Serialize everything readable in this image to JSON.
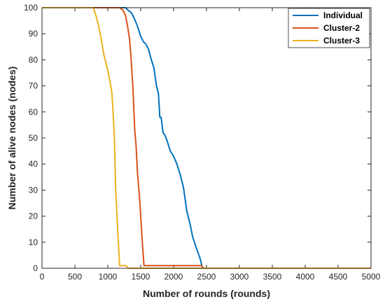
{
  "chart_data": {
    "type": "line",
    "xlabel": "Number of rounds (rounds)",
    "ylabel": "Number of alive nodes (nodes)",
    "xlim": [
      0,
      5000
    ],
    "ylim": [
      0,
      100
    ],
    "xticks": [
      0,
      500,
      1000,
      1500,
      2000,
      2500,
      3000,
      3500,
      4000,
      4500,
      5000
    ],
    "yticks": [
      0,
      10,
      20,
      30,
      40,
      50,
      60,
      70,
      80,
      90,
      100
    ],
    "xtick_labels": [
      "0",
      "500",
      "1000",
      "1500",
      "2000",
      "2500",
      "3000",
      "3500",
      "4000",
      "4500",
      "5000"
    ],
    "ytick_labels": [
      "0",
      "10",
      "20",
      "30",
      "40",
      "50",
      "60",
      "70",
      "80",
      "90",
      "100"
    ],
    "grid": false,
    "legend_position": "top-right",
    "series": [
      {
        "name": "Individual",
        "color": "#0072BD",
        "x": [
          0,
          1270,
          1310,
          1360,
          1400,
          1450,
          1500,
          1540,
          1580,
          1620,
          1650,
          1700,
          1740,
          1770,
          1790,
          1810,
          1840,
          1870,
          1900,
          1950,
          2000,
          2050,
          2100,
          2150,
          2200,
          2250,
          2290,
          2330,
          2370,
          2400,
          2430,
          2450,
          2470,
          5000
        ],
        "y": [
          100,
          100,
          99,
          98,
          96,
          93,
          89,
          87,
          86,
          84,
          81,
          77,
          70,
          67,
          58,
          58,
          52,
          51,
          49,
          45,
          43,
          40,
          36,
          31,
          22,
          17,
          12,
          9,
          6,
          4,
          1,
          0,
          0,
          0
        ]
      },
      {
        "name": "Cluster-2",
        "color": "#D95319",
        "x": [
          0,
          1180,
          1230,
          1270,
          1300,
          1330,
          1350,
          1380,
          1410,
          1430,
          1450,
          1480,
          1510,
          1530,
          1550,
          2430,
          2450,
          5000
        ],
        "y": [
          100,
          100,
          99,
          97,
          93,
          88,
          82,
          70,
          53,
          47,
          37,
          28,
          16,
          8,
          1,
          1,
          0,
          0
        ]
      },
      {
        "name": "Cluster-3",
        "color": "#EDB120",
        "x": [
          0,
          780,
          820,
          860,
          900,
          940,
          970,
          1000,
          1030,
          1060,
          1080,
          1100,
          1120,
          1140,
          1160,
          1180,
          1200,
          1220,
          1240,
          1260,
          1280,
          1310,
          5000
        ],
        "y": [
          100,
          100,
          97,
          93,
          88,
          82,
          79,
          76,
          72,
          68,
          60,
          50,
          30,
          20,
          10,
          1,
          1,
          1,
          1,
          1,
          1,
          0,
          0
        ]
      }
    ]
  }
}
